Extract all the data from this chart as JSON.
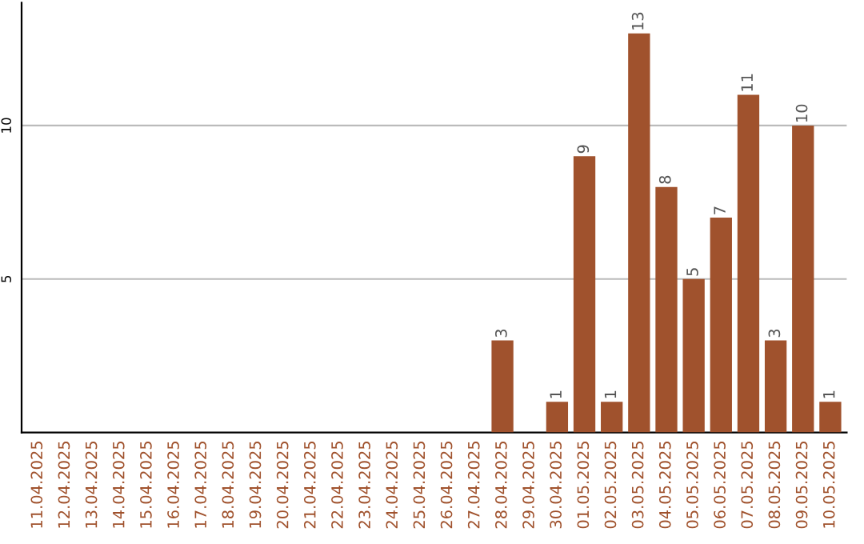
{
  "chart_data": {
    "type": "bar",
    "categories": [
      "11.04.2025",
      "12.04.2025",
      "13.04.2025",
      "14.04.2025",
      "15.04.2025",
      "16.04.2025",
      "17.04.2025",
      "18.04.2025",
      "19.04.2025",
      "20.04.2025",
      "21.04.2025",
      "22.04.2025",
      "23.04.2025",
      "24.04.2025",
      "25.04.2025",
      "26.04.2025",
      "27.04.2025",
      "28.04.2025",
      "29.04.2025",
      "30.04.2025",
      "01.05.2025",
      "02.05.2025",
      "03.05.2025",
      "04.05.2025",
      "05.05.2025",
      "06.05.2025",
      "07.05.2025",
      "08.05.2025",
      "09.05.2025",
      "10.05.2025"
    ],
    "values": [
      0,
      0,
      0,
      0,
      0,
      0,
      0,
      0,
      0,
      0,
      0,
      0,
      0,
      0,
      0,
      0,
      0,
      3,
      0,
      1,
      9,
      1,
      13,
      8,
      5,
      7,
      11,
      3,
      10,
      1
    ],
    "value_labels": [
      null,
      null,
      null,
      null,
      null,
      null,
      null,
      null,
      null,
      null,
      null,
      null,
      null,
      null,
      null,
      null,
      null,
      "3",
      null,
      "1",
      "9",
      "1",
      "13",
      "8",
      "5",
      "7",
      "11",
      "3",
      "10",
      "1"
    ],
    "color": "#a0522d",
    "ylim": [
      0,
      14
    ],
    "yticks": [
      5,
      10
    ],
    "grid": "y"
  }
}
